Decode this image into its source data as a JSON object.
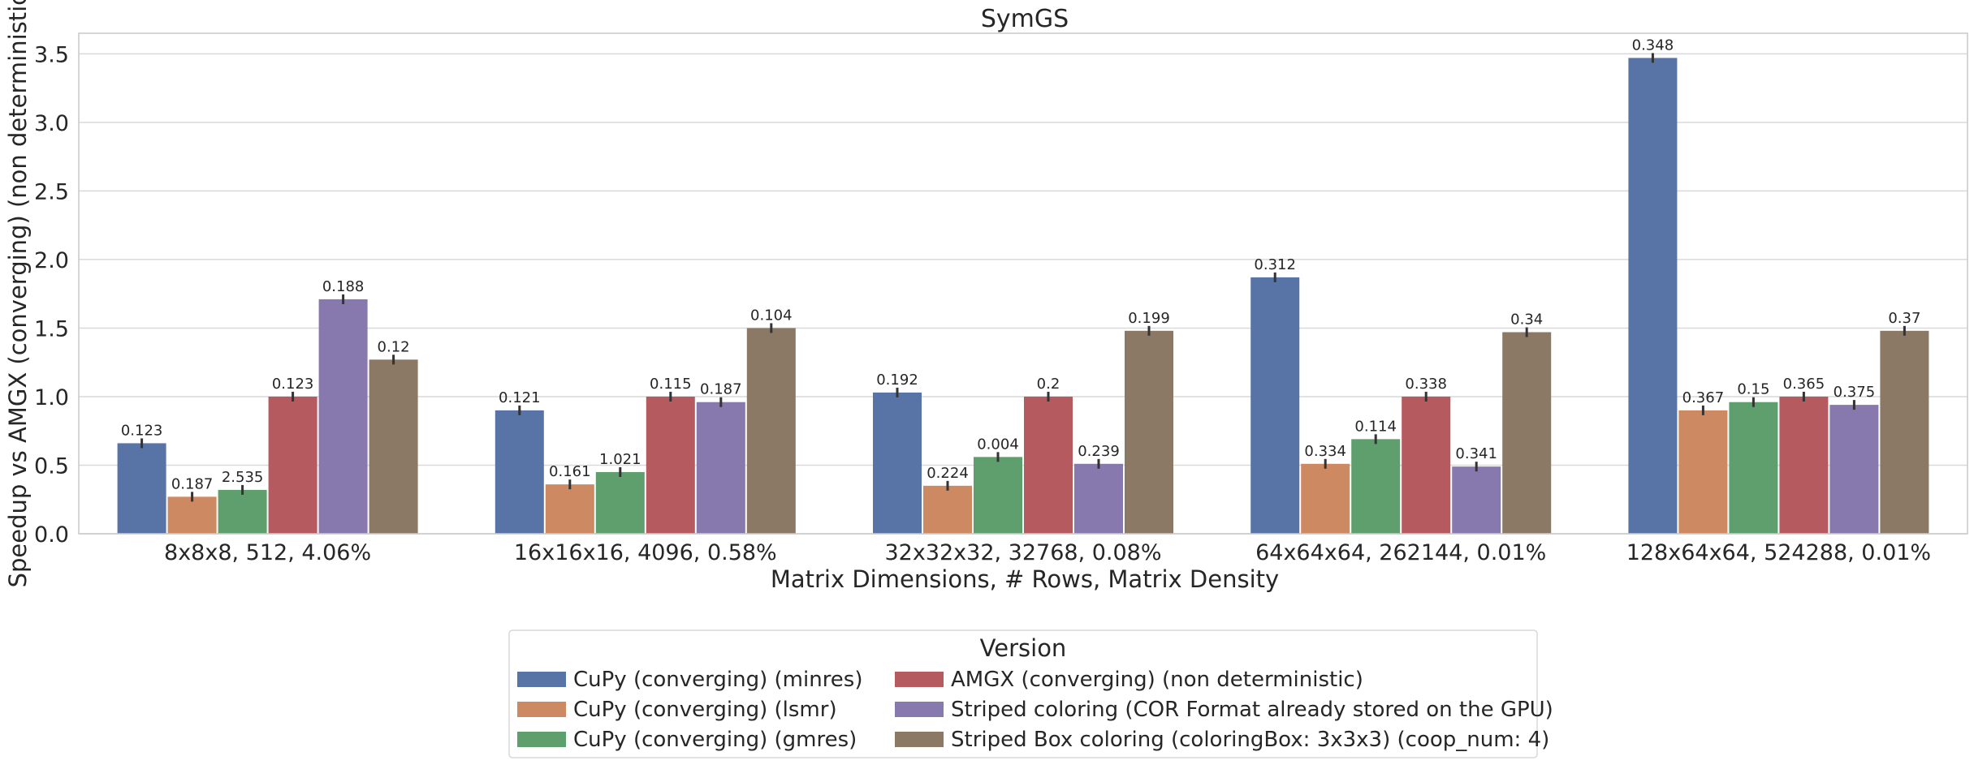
{
  "chart_data": {
    "type": "bar",
    "title": "SymGS",
    "xlabel": "Matrix Dimensions, # Rows, Matrix Density",
    "ylabel": "Speedup vs AMGX (converging) (non deterministic)",
    "ylim": [
      0,
      3.65
    ],
    "yticks": [
      0.0,
      0.5,
      1.0,
      1.5,
      2.0,
      2.5,
      3.0,
      3.5
    ],
    "grid": true,
    "legend_title": "Version",
    "legend_position": "bottom-center",
    "categories": [
      "8x8x8, 512, 4.06%",
      "16x16x16, 4096, 0.58%",
      "32x32x32, 32768, 0.08%",
      "64x64x64, 262144, 0.01%",
      "128x64x64, 524288, 0.01%"
    ],
    "series": [
      {
        "name": "CuPy (converging) (minres)",
        "color": "#5874a6",
        "values": [
          0.66,
          0.9,
          1.03,
          1.87,
          3.47
        ],
        "labels": [
          "0.123",
          "0.121",
          "0.192",
          "0.312",
          "0.348"
        ]
      },
      {
        "name": "CuPy (converging) (lsmr)",
        "color": "#cd8a62",
        "values": [
          0.27,
          0.36,
          0.35,
          0.51,
          0.9
        ],
        "labels": [
          "0.187",
          "0.161",
          "0.224",
          "0.334",
          "0.367"
        ]
      },
      {
        "name": "CuPy (converging) (gmres)",
        "color": "#5f9f6d",
        "values": [
          0.32,
          0.45,
          0.56,
          0.69,
          0.96
        ],
        "labels": [
          "2.535",
          "1.021",
          "0.004",
          "0.114",
          "0.15"
        ]
      },
      {
        "name": "AMGX (converging) (non deterministic)",
        "color": "#b55a5e",
        "values": [
          1.0,
          1.0,
          1.0,
          1.0,
          1.0
        ],
        "labels": [
          "0.123",
          "0.115",
          "0.2",
          "0.338",
          "0.365"
        ]
      },
      {
        "name": "Striped coloring (COR Format already stored on the GPU)",
        "color": "#8779ad",
        "values": [
          1.71,
          0.96,
          0.51,
          0.49,
          0.94
        ],
        "labels": [
          "0.188",
          "0.187",
          "0.239",
          "0.341",
          "0.375"
        ]
      },
      {
        "name": "Striped Box coloring (coloringBox: 3x3x3) (coop_num: 4)",
        "color": "#8b7865",
        "values": [
          1.27,
          1.5,
          1.48,
          1.47,
          1.48
        ],
        "labels": [
          "0.12",
          "0.104",
          "0.199",
          "0.34",
          "0.37"
        ]
      }
    ]
  }
}
